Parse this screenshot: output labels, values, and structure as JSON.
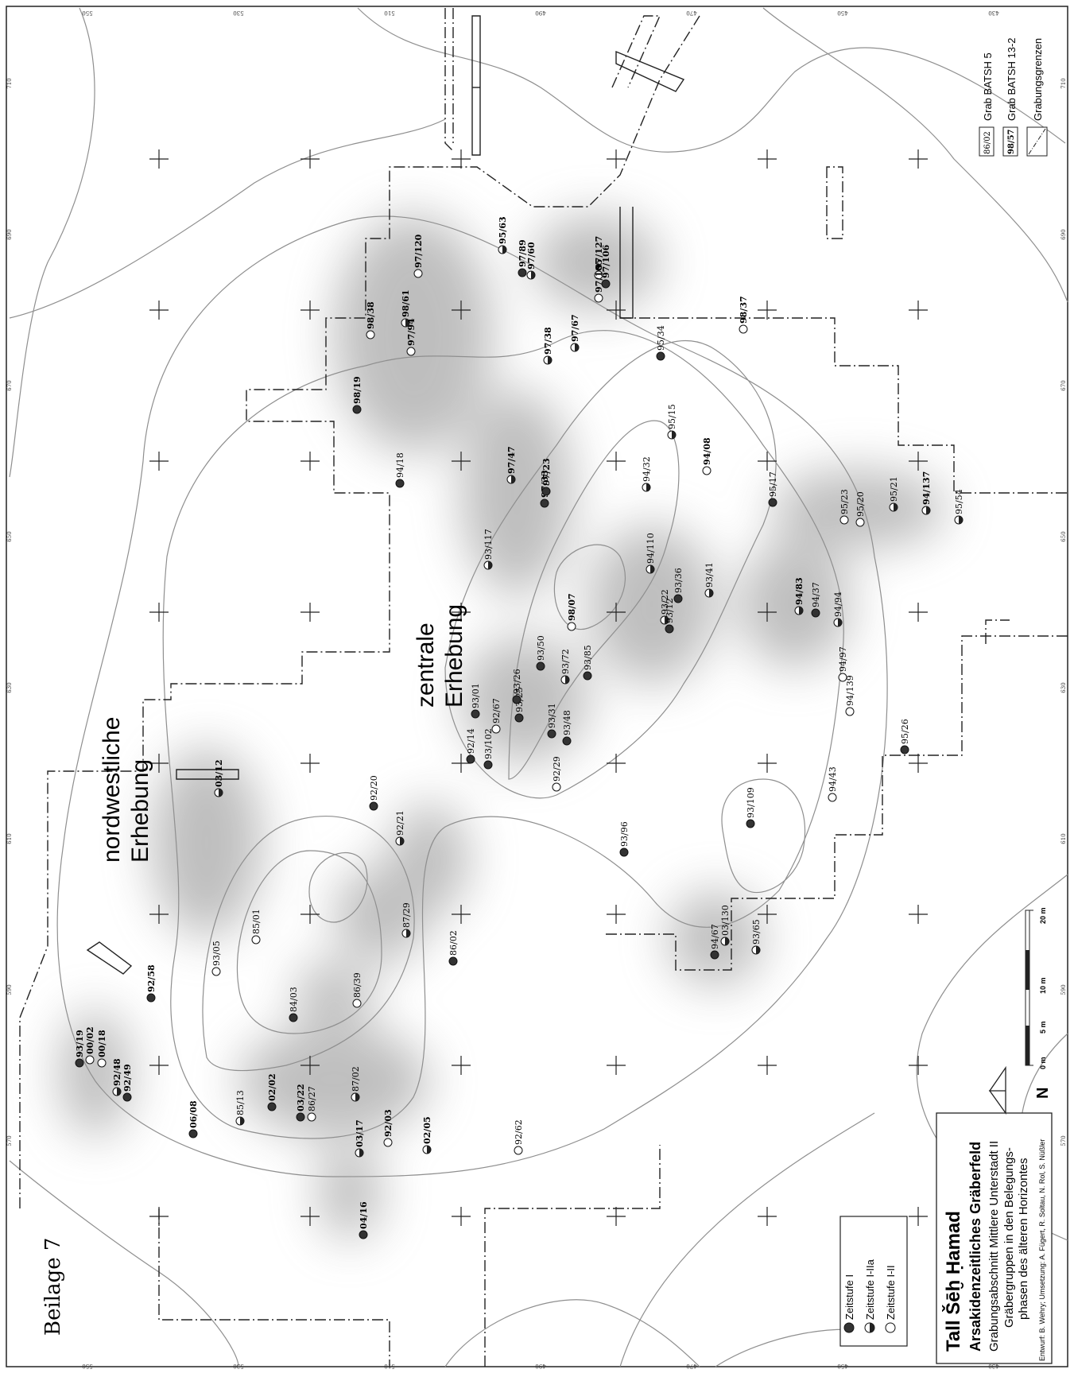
{
  "sheet_label": "Beilage 7",
  "regions": {
    "northwest_line1": "nordwestliche",
    "northwest_line2": "Erhebung",
    "central_line1": "zentrale",
    "central_line2": "Erhebung"
  },
  "title_block": {
    "title": "Tall Šēḫ Ḥamad",
    "subtitle": "Arsakidenzeitliches Gräberfeld",
    "line3": "Grabungsabschnitt Mittlere Unterstadt II",
    "line4": "Gräbergruppen in den Belegungs-",
    "line5": "phasen des älteren Horizontes",
    "credits": "Entwurf: B. Wehry; Umsetzung: A. Fügert, R. Soltau, N. Rol, S. Nüßler"
  },
  "phase_legend": {
    "zeitstufe_1": "Zeitstufe I",
    "zeitstufe_1_2a": "Zeitstufe I-IIa",
    "zeitstufe_1_2": "Zeitstufe I-II"
  },
  "symbol_legend": {
    "batsh5_sample": "86/02",
    "batsh5_label": "Grab BATSH 5",
    "batsh13_sample": "98/57",
    "batsh13_label": "Grab BATSH 13-2",
    "boundary_label": "Grabungsgrenzen"
  },
  "north_arrow": "N",
  "scale_bar": {
    "l0": "0 m",
    "l5": "5 m",
    "l10": "10 m",
    "l20": "20 m"
  },
  "grid_labels": {
    "top": [
      "550",
      "530",
      "510",
      "490",
      "470",
      "450",
      "430"
    ],
    "side": [
      "710",
      "690",
      "670",
      "650",
      "630",
      "610",
      "590",
      "570"
    ]
  },
  "graves": [
    {
      "label": "93/19",
      "type": "full"
    },
    {
      "label": "00/02",
      "type": "open"
    },
    {
      "label": "00/18",
      "type": "open"
    },
    {
      "label": "92/48",
      "type": "half"
    },
    {
      "label": "92/49",
      "type": "full"
    },
    {
      "label": "92/58",
      "type": "full"
    },
    {
      "label": "06/08",
      "type": "full"
    },
    {
      "label": "85/13",
      "type": "half"
    },
    {
      "label": "02/02",
      "type": "full"
    },
    {
      "label": "03/22",
      "type": "full"
    },
    {
      "label": "86/27",
      "type": "open"
    },
    {
      "label": "87/02",
      "type": "half"
    },
    {
      "label": "03/17",
      "type": "half"
    },
    {
      "label": "92/03",
      "type": "open"
    },
    {
      "label": "02/05",
      "type": "half"
    },
    {
      "label": "04/16",
      "type": "full"
    },
    {
      "label": "92/62",
      "type": "open"
    },
    {
      "label": "93/05",
      "type": "open"
    },
    {
      "label": "85/01",
      "type": "open"
    },
    {
      "label": "84/03",
      "type": "full"
    },
    {
      "label": "86/39",
      "type": "open"
    },
    {
      "label": "03/12",
      "type": "half"
    },
    {
      "label": "92/20",
      "type": "full"
    },
    {
      "label": "92/21",
      "type": "half"
    },
    {
      "label": "87/29",
      "type": "half"
    },
    {
      "label": "86/02",
      "type": "full"
    },
    {
      "label": "92/14",
      "type": "full"
    },
    {
      "label": "93/102",
      "type": "full"
    },
    {
      "label": "92/29",
      "type": "open"
    },
    {
      "label": "93/01",
      "type": "full"
    },
    {
      "label": "92/67",
      "type": "open"
    },
    {
      "label": "93/25",
      "type": "full"
    },
    {
      "label": "93/26",
      "type": "full"
    },
    {
      "label": "93/31",
      "type": "full"
    },
    {
      "label": "93/48",
      "type": "full"
    },
    {
      "label": "93/72",
      "type": "half"
    },
    {
      "label": "93/85",
      "type": "full"
    },
    {
      "label": "93/50",
      "type": "full"
    },
    {
      "label": "93/96",
      "type": "full"
    },
    {
      "label": "93/117",
      "type": "half"
    },
    {
      "label": "97/33",
      "type": "full"
    },
    {
      "label": "97/23",
      "type": "full"
    },
    {
      "label": "97/47",
      "type": "half"
    },
    {
      "label": "94/18",
      "type": "full"
    },
    {
      "label": "98/19",
      "type": "full"
    },
    {
      "label": "98/38",
      "type": "open"
    },
    {
      "label": "98/61",
      "type": "half"
    },
    {
      "label": "97/94",
      "type": "open"
    },
    {
      "label": "97/120",
      "type": "open"
    },
    {
      "label": "95/63",
      "type": "half"
    },
    {
      "label": "97/89",
      "type": "full"
    },
    {
      "label": "97/60",
      "type": "half"
    },
    {
      "label": "97/38",
      "type": "half"
    },
    {
      "label": "97/67",
      "type": "half"
    },
    {
      "label": "97/127",
      "type": "open"
    },
    {
      "label": "97/106",
      "type": "full"
    },
    {
      "label": "97/105",
      "type": "open"
    },
    {
      "label": "95/34",
      "type": "full"
    },
    {
      "label": "98/37",
      "type": "open"
    },
    {
      "label": "95/15",
      "type": "half"
    },
    {
      "label": "94/08",
      "type": "open"
    },
    {
      "label": "94/32",
      "type": "half"
    },
    {
      "label": "94/110",
      "type": "half"
    },
    {
      "label": "98/07",
      "type": "open"
    },
    {
      "label": "93/22",
      "type": "half"
    },
    {
      "label": "93/12",
      "type": "full"
    },
    {
      "label": "93/36",
      "type": "full"
    },
    {
      "label": "93/41",
      "type": "half"
    },
    {
      "label": "95/17",
      "type": "full"
    },
    {
      "label": "94/83",
      "type": "half"
    },
    {
      "label": "94/37",
      "type": "full"
    },
    {
      "label": "94/94",
      "type": "half"
    },
    {
      "label": "94/97",
      "type": "open"
    },
    {
      "label": "94/139",
      "type": "open"
    },
    {
      "label": "95/23",
      "type": "open"
    },
    {
      "label": "95/20",
      "type": "open"
    },
    {
      "label": "95/21",
      "type": "half"
    },
    {
      "label": "94/137",
      "type": "half"
    },
    {
      "label": "95/54",
      "type": "half"
    },
    {
      "label": "95/26",
      "type": "full"
    },
    {
      "label": "94/43",
      "type": "open"
    },
    {
      "label": "93/109",
      "type": "full"
    },
    {
      "label": "94/67",
      "type": "full"
    },
    {
      "label": "03/130",
      "type": "half"
    },
    {
      "label": "93/65",
      "type": "half"
    }
  ]
}
